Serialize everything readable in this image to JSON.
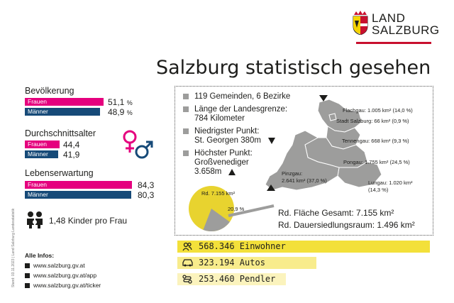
{
  "logo": {
    "line1": "LAND",
    "line2": "SALZBURG"
  },
  "title": "Salzburg statistisch gesehen",
  "population": {
    "heading": "Bevölkerung",
    "women_label": "Frauen",
    "women_value": "51,1",
    "women_unit": "%",
    "men_label": "Männer",
    "men_value": "48,9",
    "men_unit": "%",
    "women_share": 0.511,
    "men_share": 0.489
  },
  "average_age": {
    "heading": "Durchschnittsalter",
    "women_label": "Frauen",
    "women_value": "44,4",
    "men_label": "Männer",
    "men_value": "41,9"
  },
  "life_expectancy": {
    "heading": "Lebenserwartung",
    "women_label": "Frauen",
    "women_value": "84,3",
    "men_label": "Männer",
    "men_value": "80,3"
  },
  "children": {
    "text": "1,48 Kinder pro Frau"
  },
  "facts": [
    "119 Gemeinden, 6 Bezirke",
    "Länge der Landesgrenze:",
    "784 Kilometer",
    "Niedrigster Punkt:",
    "St. Georgen 380m",
    "Höchster Punkt:",
    "Großvenediger",
    "3.658m"
  ],
  "districts": [
    "Flachgau: 1.005 km² (14,0 %)",
    "Stadt Salzburg: 66 km² (0,9 %)",
    "Tennengau: 668 km² (9,3 %)",
    "Pongau: 1.755 km² (24,5 %)",
    "Lungau: 1.020 km²",
    "(14,3 %)",
    "Pinzgau:",
    "2.641 km² (37,0 %)"
  ],
  "pie": {
    "total_label": "Rd. 7.155 km²",
    "slice_label": "20,9 %",
    "slice_share": 0.209
  },
  "area": {
    "total": "Rd. Fläche Gesamt: 7.155 km²",
    "settlement": "Rd. Dauersiedlungsraum: 1.496 km²"
  },
  "stats": [
    {
      "text": "568.346 Einwohner",
      "color": "#f3e03a"
    },
    {
      "text": "323.194 Autos",
      "color": "#f8ec8c"
    },
    {
      "text": "253.460 Pendler",
      "color": "#fbf3bd"
    }
  ],
  "info": {
    "heading": "Alle Infos:",
    "links": [
      "www.salzburg.gv.at",
      "www.salzburg.gv.at/app",
      "www.salzburg.gv.at/ticker"
    ]
  },
  "source": "Stand: 03.11.2023 | Land Salzburg Landesstatistik",
  "colors": {
    "women": "#e5007e",
    "men": "#164a78",
    "brand_red": "#c8102e",
    "map_gray": "#9d9d9c",
    "pie_yellow": "#e8d32f"
  }
}
